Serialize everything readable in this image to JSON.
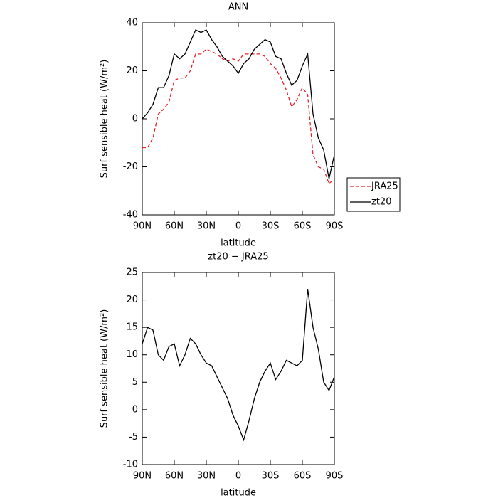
{
  "chart_data": [
    {
      "type": "line",
      "title": "ANN",
      "x_label": "latitude",
      "y_label": "Surf sensible heat (W/m²)",
      "x": [
        90,
        85,
        80,
        75,
        70,
        65,
        60,
        55,
        50,
        45,
        40,
        35,
        30,
        25,
        20,
        15,
        10,
        5,
        0,
        -5,
        -10,
        -15,
        -20,
        -25,
        -30,
        -35,
        -40,
        -45,
        -50,
        -55,
        -60,
        -65,
        -70,
        -75,
        -80,
        -85,
        -90
      ],
      "series": [
        {
          "name": "JRA25",
          "color": "#e8202a",
          "style": "dashed",
          "values": [
            -12,
            -12,
            -8,
            2,
            4,
            7,
            16,
            17,
            17,
            20,
            27,
            27,
            29,
            28,
            27,
            25,
            24,
            25,
            24,
            27,
            27,
            27,
            27,
            26,
            23,
            21,
            17,
            12,
            5,
            8,
            13,
            10,
            -15,
            -20,
            -21,
            -27,
            -25
          ]
        },
        {
          "name": "zt20",
          "color": "#000000",
          "style": "solid",
          "values": [
            0,
            2.5,
            6,
            13,
            13,
            18,
            27,
            25,
            27,
            32,
            37,
            36,
            37,
            33,
            30,
            26,
            24,
            22,
            19,
            23,
            25,
            29,
            31,
            33,
            32,
            26,
            25,
            19,
            14,
            16,
            22,
            27,
            2,
            -8,
            -13,
            -25,
            -15
          ]
        }
      ],
      "xlim": [
        90,
        -90
      ],
      "xticks": [
        {
          "value": 90,
          "label": "90N"
        },
        {
          "value": 60,
          "label": "60N"
        },
        {
          "value": 30,
          "label": "30N"
        },
        0,
        {
          "value": -30,
          "label": "30S"
        },
        {
          "value": -60,
          "label": "60S"
        },
        {
          "value": -90,
          "label": "90S"
        }
      ],
      "ylim": [
        -40,
        40
      ],
      "yticks": [
        -40,
        -20,
        0,
        20,
        40
      ],
      "legend": "right"
    },
    {
      "type": "line",
      "title": "zt20 − JRA25",
      "x_label": "latitude",
      "y_label": "Surf sensible heat (W/m²)",
      "x": [
        90,
        85,
        80,
        75,
        70,
        65,
        60,
        55,
        50,
        45,
        40,
        35,
        30,
        25,
        20,
        15,
        10,
        5,
        0,
        -5,
        -10,
        -15,
        -20,
        -25,
        -30,
        -35,
        -40,
        -45,
        -50,
        -55,
        -60,
        -65,
        -70,
        -75,
        -80,
        -85,
        -90
      ],
      "series": [
        {
          "color": "#000000",
          "style": "solid",
          "values": [
            12,
            15,
            14.5,
            10,
            9,
            11.5,
            12,
            8,
            10,
            13,
            12,
            10,
            8.5,
            8,
            6,
            4,
            2,
            -1,
            -3,
            -5.5,
            -2,
            2,
            5,
            7,
            8.5,
            5.5,
            7,
            9,
            8.5,
            8,
            9,
            22,
            15,
            11,
            5,
            3.5,
            6
          ]
        }
      ],
      "xlim": [
        90,
        -90
      ],
      "xticks": [
        {
          "value": 90,
          "label": "90N"
        },
        {
          "value": 60,
          "label": "60N"
        },
        {
          "value": 30,
          "label": "30N"
        },
        0,
        {
          "value": -30,
          "label": "30S"
        },
        {
          "value": -60,
          "label": "60S"
        },
        {
          "value": -90,
          "label": "90S"
        }
      ],
      "ylim": [
        -10,
        25
      ],
      "yticks": [
        -10,
        -5,
        0,
        5,
        10,
        15,
        20,
        25
      ]
    }
  ]
}
